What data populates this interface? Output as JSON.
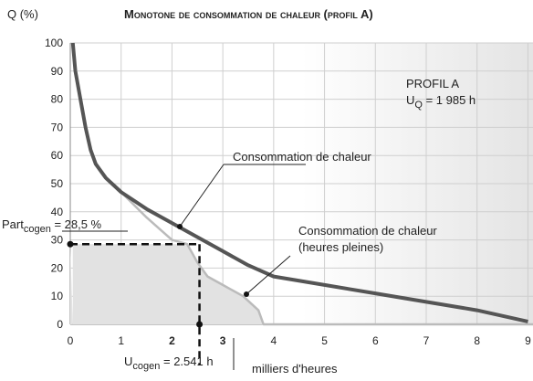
{
  "chart_data": {
    "type": "line",
    "title": "Monotone de consommation de chaleur (profil A)",
    "y_label": "Q (%)",
    "x_label": "milliers d'heures",
    "xlim": [
      0,
      9.1
    ],
    "ylim": [
      0,
      100
    ],
    "xticks": [
      0,
      1,
      2,
      3,
      4,
      5,
      6,
      7,
      8,
      9
    ],
    "yticks": [
      0,
      10,
      20,
      30,
      40,
      50,
      60,
      70,
      80,
      90,
      100
    ],
    "grid": true,
    "series": [
      {
        "name": "Consommation de chaleur",
        "color": "#555555",
        "x": [
          0.05,
          0.1,
          0.2,
          0.3,
          0.4,
          0.5,
          0.7,
          1,
          1.5,
          2,
          2.5,
          3,
          3.5,
          4,
          5,
          6,
          7,
          8,
          9
        ],
        "values": [
          100,
          90,
          80,
          70,
          62,
          57,
          52,
          47,
          41,
          36,
          31,
          26,
          21,
          17,
          14,
          11,
          8,
          5,
          1
        ]
      },
      {
        "name": "Consommation de chaleur (heures pleines)",
        "color": "#bbbbbb",
        "x": [
          0.05,
          0.1,
          0.2,
          0.3,
          0.4,
          0.5,
          0.7,
          1,
          1.5,
          2,
          2.3,
          2.5,
          2.7,
          3,
          3.4,
          3.7,
          3.8,
          9.1
        ],
        "values": [
          100,
          90,
          80,
          70,
          62,
          57,
          52,
          47,
          38,
          30,
          28.5,
          22,
          17,
          14,
          10,
          5,
          0,
          0
        ]
      }
    ],
    "cogen_share": 28.5,
    "cogen_hours": 2.541,
    "annotations": {
      "profile": "PROFIL A",
      "u_q": [
        "U",
        "Q",
        " = 1 985 h"
      ],
      "part_cogen": [
        "Part",
        "cogen",
        " = 28,5 %"
      ],
      "u_cogen": [
        "U",
        "cogen",
        " = 2.541 h"
      ]
    }
  }
}
